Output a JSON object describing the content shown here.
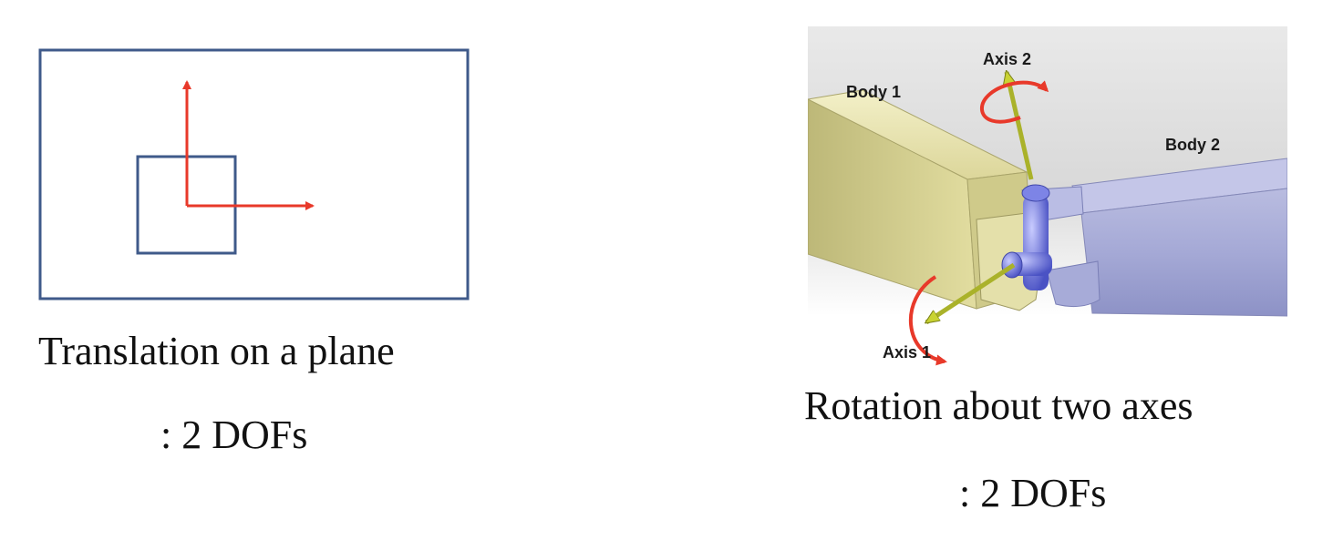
{
  "left_panel": {
    "caption_line1": "Translation on a plane",
    "caption_line2": ": 2 DOFs"
  },
  "right_panel": {
    "labels": {
      "body1": "Body 1",
      "body2": "Body 2",
      "axis1": "Axis 1",
      "axis2": "Axis 2"
    },
    "caption_line1": "Rotation about two axes",
    "caption_line2": ": 2 DOFs"
  },
  "colors": {
    "frame_blue": "#3f5a8a",
    "arrow_red": "#e8392a",
    "axis_green": "#b5c02a",
    "body1_yellow": "#e6e1a4",
    "body2_lavender": "#a9add8",
    "joint_blue": "#6c73d8"
  }
}
